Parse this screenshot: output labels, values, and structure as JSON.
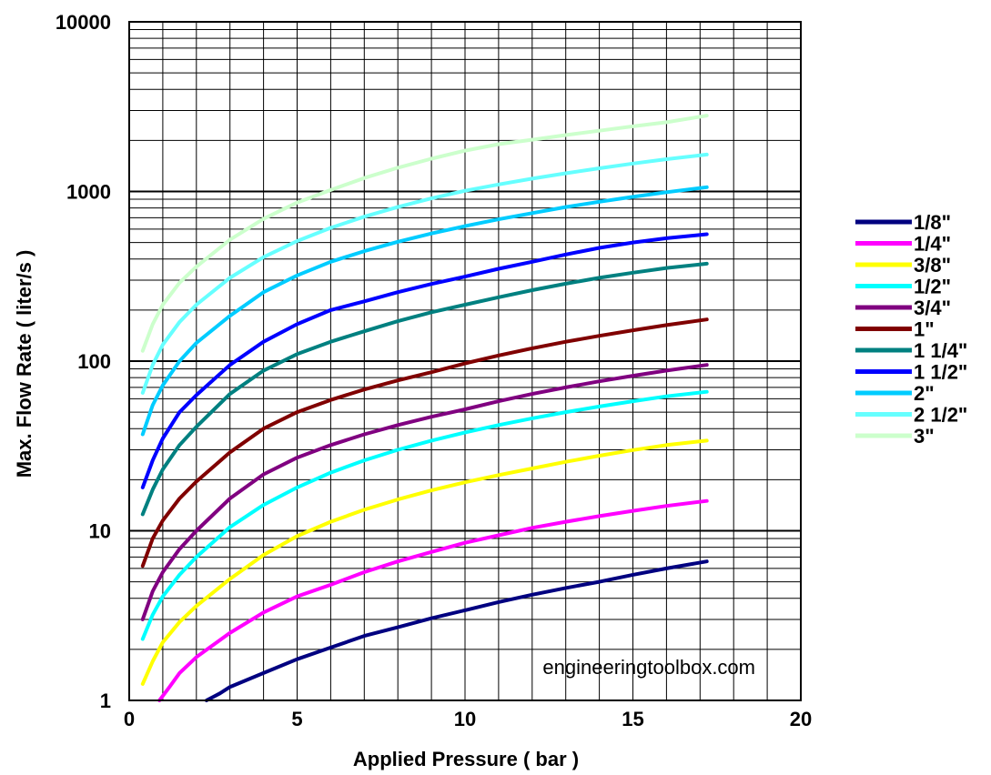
{
  "chart_data": {
    "type": "line",
    "title": "",
    "xlabel": "Applied Pressure ( bar )",
    "ylabel": "Max. Flow Rate ( liter/s )",
    "xlim": [
      0,
      20
    ],
    "ylim": [
      1,
      10000
    ],
    "yscale": "log",
    "grid": true,
    "legend_position": "right",
    "x_ticks": [
      "0",
      "5",
      "10",
      "15",
      "20"
    ],
    "y_ticks": [
      "1",
      "10",
      "100",
      "1000",
      "10000"
    ],
    "watermark": "engineeringtoolbox.com",
    "series": [
      {
        "name": "1/8\"",
        "color": "#000080",
        "x": [
          2.3,
          2.7,
          3,
          4,
          5,
          6,
          7,
          8,
          9,
          10,
          11,
          12,
          13,
          14,
          15,
          16,
          17.2
        ],
        "y": [
          1.0,
          1.1,
          1.2,
          1.45,
          1.75,
          2.05,
          2.4,
          2.7,
          3.05,
          3.4,
          3.8,
          4.2,
          4.6,
          5.0,
          5.5,
          6.0,
          6.6
        ]
      },
      {
        "name": "1/4\"",
        "color": "#ff00ff",
        "x": [
          0.9,
          1.2,
          1.5,
          2,
          3,
          4,
          5,
          6,
          7,
          8,
          9,
          10,
          11,
          12,
          13,
          14,
          15,
          16,
          17.2
        ],
        "y": [
          1.0,
          1.2,
          1.45,
          1.8,
          2.5,
          3.3,
          4.1,
          4.8,
          5.7,
          6.6,
          7.5,
          8.5,
          9.4,
          10.4,
          11.3,
          12.2,
          13.1,
          14.0,
          15.0
        ]
      },
      {
        "name": "3/8\"",
        "color": "#ffff00",
        "x": [
          0.4,
          0.7,
          1,
          1.5,
          2,
          3,
          4,
          5,
          6,
          7,
          8,
          9,
          10,
          11,
          12,
          13,
          14,
          15,
          16,
          17.2
        ],
        "y": [
          1.25,
          1.7,
          2.2,
          2.9,
          3.6,
          5.2,
          7.2,
          9.3,
          11.3,
          13.3,
          15.3,
          17.3,
          19.3,
          21.3,
          23.3,
          25.5,
          27.7,
          29.9,
          32.0,
          34.0
        ]
      },
      {
        "name": "1/2\"",
        "color": "#00ffff",
        "x": [
          0.4,
          0.7,
          1,
          1.5,
          2,
          3,
          4,
          5,
          6,
          7,
          8,
          9,
          10,
          11,
          12,
          13,
          14,
          15,
          16,
          17.2
        ],
        "y": [
          2.3,
          3.2,
          4.1,
          5.5,
          7.0,
          10.5,
          14.2,
          18.0,
          22.0,
          26.0,
          30.0,
          34.0,
          38.0,
          42.0,
          46.0,
          50.0,
          54.0,
          58.0,
          62.0,
          66.0
        ]
      },
      {
        "name": "3/4\"",
        "color": "#800080",
        "x": [
          0.4,
          0.7,
          1,
          1.5,
          2,
          3,
          4,
          5,
          6,
          7,
          8,
          9,
          10,
          11,
          12,
          13,
          14,
          15,
          16,
          17.2
        ],
        "y": [
          3.0,
          4.4,
          5.7,
          7.8,
          10.0,
          15.5,
          21.5,
          27.0,
          32.0,
          37.0,
          42.0,
          47.0,
          52.0,
          58.0,
          64.0,
          70.0,
          76.0,
          82.0,
          88.0,
          95.0
        ]
      },
      {
        "name": "1\"",
        "color": "#800000",
        "x": [
          0.4,
          0.7,
          1,
          1.5,
          2,
          3,
          4,
          5,
          6,
          7,
          8,
          9,
          10,
          11,
          12,
          13,
          14,
          15,
          16,
          17.2
        ],
        "y": [
          6.2,
          9.0,
          11.5,
          15.5,
          19.5,
          29.0,
          40.0,
          50.0,
          59.0,
          68.0,
          77.0,
          86.0,
          97.0,
          108.0,
          119.0,
          130.0,
          141.0,
          152.0,
          163.0,
          176.0
        ]
      },
      {
        "name": "1 1/4\"",
        "color": "#008080",
        "x": [
          0.4,
          0.7,
          1,
          1.5,
          2,
          3,
          4,
          5,
          6,
          7,
          8,
          9,
          10,
          11,
          12,
          13,
          14,
          15,
          16,
          17.2
        ],
        "y": [
          12.5,
          17.5,
          23.0,
          32.0,
          41.0,
          64.0,
          88.0,
          110.0,
          130.0,
          150.0,
          172.0,
          194.0,
          215.0,
          238.0,
          262.0,
          286.0,
          310.0,
          332.0,
          354.0,
          375.0
        ]
      },
      {
        "name": "1 1/2\"",
        "color": "#0000ff",
        "x": [
          0.4,
          0.7,
          1,
          1.5,
          2,
          3,
          4,
          5,
          6,
          7,
          8,
          9,
          10,
          11,
          12,
          13,
          14,
          15,
          16,
          17.2
        ],
        "y": [
          18.0,
          26.0,
          35.0,
          50.0,
          63.0,
          95.0,
          130.0,
          165.0,
          200.0,
          225.0,
          255.0,
          285.0,
          315.0,
          350.0,
          385.0,
          425.0,
          465.0,
          500.0,
          530.0,
          560.0
        ]
      },
      {
        "name": "2\"",
        "color": "#00ccff",
        "x": [
          0.4,
          0.7,
          1,
          1.5,
          2,
          3,
          4,
          5,
          6,
          7,
          8,
          9,
          10,
          11,
          12,
          13,
          14,
          15,
          16,
          17.2
        ],
        "y": [
          37.0,
          55.0,
          72.0,
          100.0,
          128.0,
          185.0,
          255.0,
          320.0,
          385.0,
          445.0,
          505.0,
          565.0,
          625.0,
          685.0,
          745.0,
          810.0,
          870.0,
          930.0,
          990.0,
          1060.0
        ]
      },
      {
        "name": "2 1/2\"",
        "color": "#66ffff",
        "x": [
          0.4,
          0.7,
          1,
          1.5,
          2,
          3,
          4,
          5,
          6,
          7,
          8,
          9,
          10,
          11,
          12,
          13,
          14,
          15,
          16,
          17.2
        ],
        "y": [
          65.0,
          95.0,
          125.0,
          170.0,
          215.0,
          310.0,
          410.0,
          510.0,
          610.0,
          710.0,
          810.0,
          910.0,
          1010.0,
          1100.0,
          1190.0,
          1280.0,
          1370.0,
          1460.0,
          1550.0,
          1650.0
        ]
      },
      {
        "name": "3\"",
        "color": "#ccffcc",
        "x": [
          0.4,
          0.7,
          1,
          1.5,
          2,
          3,
          4,
          5,
          6,
          7,
          8,
          9,
          10,
          11,
          12,
          13,
          14,
          15,
          16,
          17.2
        ],
        "y": [
          115.0,
          165.0,
          215.0,
          290.0,
          360.0,
          520.0,
          690.0,
          860.0,
          1020.0,
          1200.0,
          1380.0,
          1560.0,
          1740.0,
          1900.0,
          2020.0,
          2150.0,
          2280.0,
          2420.0,
          2560.0,
          2800.0
        ]
      }
    ]
  }
}
